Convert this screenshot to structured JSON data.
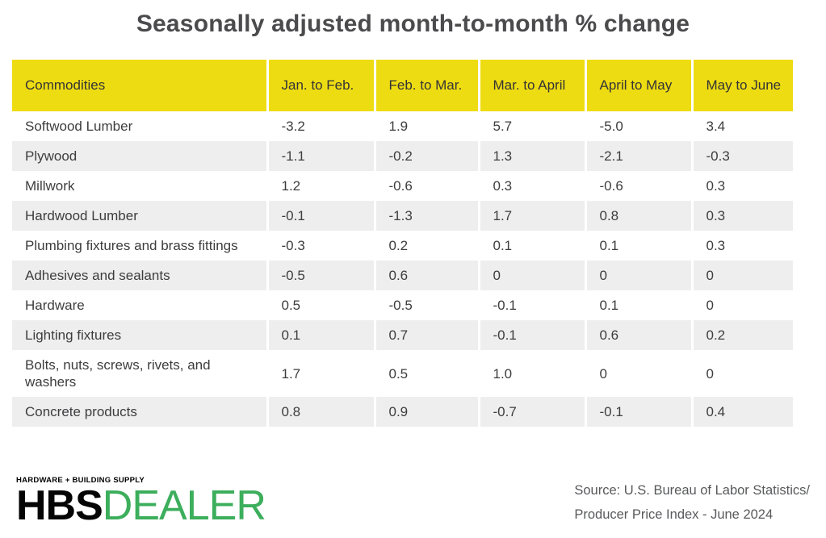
{
  "title": "Seasonally adjusted month-to-month % change",
  "table": {
    "columns": [
      "Commodities",
      "Jan. to Feb.",
      "Feb. to Mar.",
      "Mar. to April",
      "April to May",
      "May to June"
    ],
    "rows": [
      {
        "label": "Softwood Lumber",
        "values": [
          "-3.2",
          "1.9",
          "5.7",
          "-5.0",
          "3.4"
        ]
      },
      {
        "label": "Plywood",
        "values": [
          "-1.1",
          "-0.2",
          "1.3",
          "-2.1",
          "-0.3"
        ]
      },
      {
        "label": "Millwork",
        "values": [
          "1.2",
          "-0.6",
          "0.3",
          "-0.6",
          "0.3"
        ]
      },
      {
        "label": "Hardwood Lumber",
        "values": [
          "-0.1",
          "-1.3",
          "1.7",
          "0.8",
          "0.3"
        ]
      },
      {
        "label": "Plumbing fixtures and brass fittings",
        "values": [
          "-0.3",
          "0.2",
          "0.1",
          "0.1",
          "0.3"
        ]
      },
      {
        "label": "Adhesives and sealants",
        "values": [
          "-0.5",
          "0.6",
          "0",
          "0",
          "0"
        ]
      },
      {
        "label": "Hardware",
        "values": [
          "0.5",
          "-0.5",
          "-0.1",
          "0.1",
          "0"
        ]
      },
      {
        "label": "Lighting fixtures",
        "values": [
          "0.1",
          "0.7",
          "-0.1",
          "0.6",
          "0.2"
        ]
      },
      {
        "label": "Bolts, nuts, screws, rivets, and washers",
        "values": [
          "1.7",
          "0.5",
          "1.0",
          "0",
          "0"
        ]
      },
      {
        "label": "Concrete products",
        "values": [
          "0.8",
          "0.9",
          "-0.7",
          "-0.1",
          "0.4"
        ]
      }
    ]
  },
  "chart_data": {
    "type": "table",
    "title": "Seasonally adjusted month-to-month % change",
    "categories": [
      "Jan. to Feb.",
      "Feb. to Mar.",
      "Mar. to April",
      "April to May",
      "May to June"
    ],
    "series": [
      {
        "name": "Softwood Lumber",
        "values": [
          -3.2,
          1.9,
          5.7,
          -5.0,
          3.4
        ]
      },
      {
        "name": "Plywood",
        "values": [
          -1.1,
          -0.2,
          1.3,
          -2.1,
          -0.3
        ]
      },
      {
        "name": "Millwork",
        "values": [
          1.2,
          -0.6,
          0.3,
          -0.6,
          0.3
        ]
      },
      {
        "name": "Hardwood Lumber",
        "values": [
          -0.1,
          -1.3,
          1.7,
          0.8,
          0.3
        ]
      },
      {
        "name": "Plumbing fixtures and brass fittings",
        "values": [
          -0.3,
          0.2,
          0.1,
          0.1,
          0.3
        ]
      },
      {
        "name": "Adhesives and sealants",
        "values": [
          -0.5,
          0.6,
          0,
          0,
          0
        ]
      },
      {
        "name": "Hardware",
        "values": [
          0.5,
          -0.5,
          -0.1,
          0.1,
          0
        ]
      },
      {
        "name": "Lighting fixtures",
        "values": [
          0.1,
          0.7,
          -0.1,
          0.6,
          0.2
        ]
      },
      {
        "name": "Bolts, nuts, screws, rivets, and washers",
        "values": [
          1.7,
          0.5,
          1.0,
          0,
          0
        ]
      },
      {
        "name": "Concrete products",
        "values": [
          0.8,
          0.9,
          -0.7,
          -0.1,
          0.4
        ]
      }
    ],
    "layout_hints": {
      "header_fill": "#eedc12",
      "alt_row_fill": "#eeeeee",
      "grid": "off"
    }
  },
  "footer": {
    "logo": {
      "tagline": "HARDWARE + BUILDING SUPPLY",
      "brand_black": "HBS",
      "brand_green": "DEALER"
    },
    "source_line1": "Source: U.S. Bureau of Labor Statistics/",
    "source_line2": "Producer Price Index - June 2024"
  },
  "colors": {
    "header_yellow": "#eedc12",
    "alt_row_gray": "#eeeeee",
    "title_gray": "#4b4b4d",
    "body_text": "#3d3d3f",
    "source_gray": "#58595b",
    "brand_green": "#3cae5c"
  }
}
